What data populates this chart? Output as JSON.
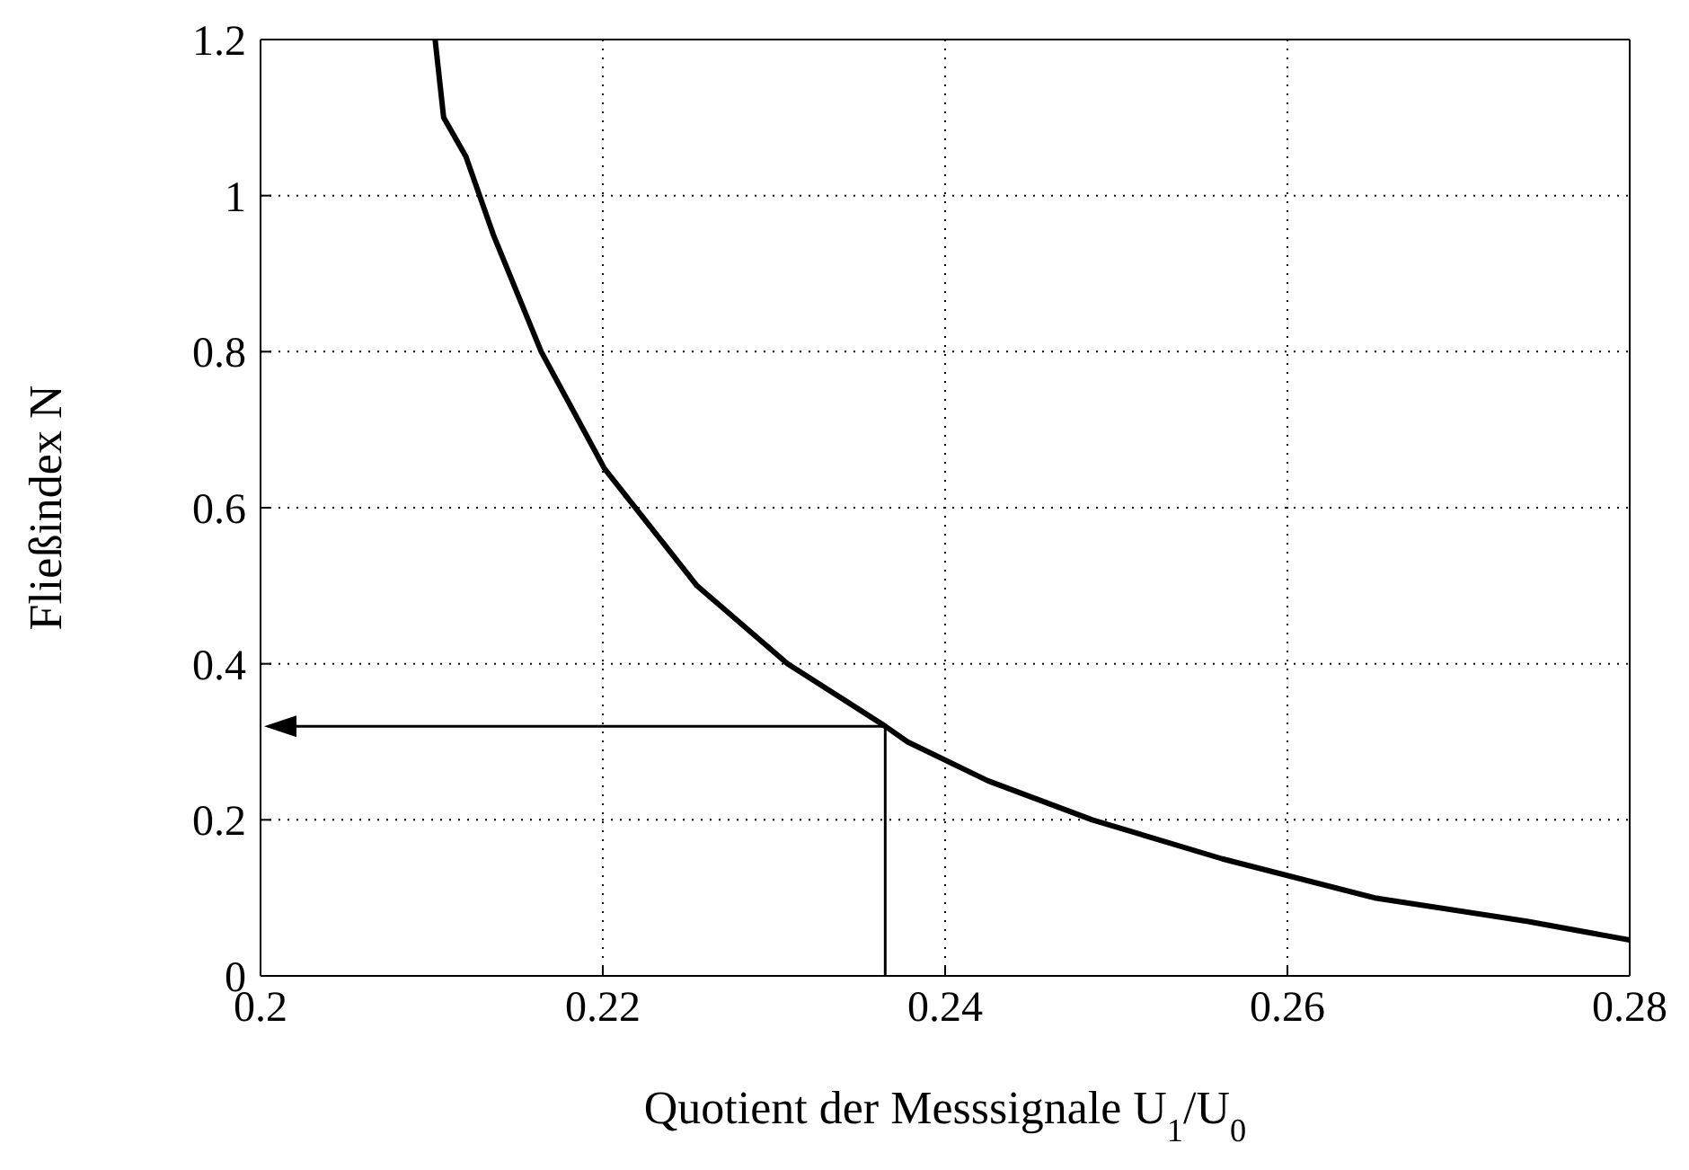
{
  "chart_data": {
    "type": "line",
    "xlabel": "Quotient der Messsignale U$_{1}$/U$_{0}$",
    "ylabel": "Fließindex N",
    "xlim": [
      0.2,
      0.28
    ],
    "xticks": [
      0.2,
      0.22,
      0.24,
      0.26,
      0.28
    ],
    "ylim": [
      0,
      1.2
    ],
    "yticks": [
      0,
      0.2,
      0.4,
      0.6,
      0.8,
      1,
      1.2
    ],
    "grid": true,
    "marker": "none",
    "line_style": "solid",
    "ref_lines": [
      {
        "axis": "x",
        "value": 0.2365,
        "color": "#000000"
      },
      {
        "axis": "y",
        "value": 0.32,
        "color": "#000000"
      }
    ],
    "series": [
      {
        "color": "#000000",
        "x": [
          0.2102,
          0.2107,
          0.212,
          0.2136,
          0.2164,
          0.2201,
          0.2255,
          0.2308,
          0.2365,
          0.2378,
          0.2425,
          0.2486,
          0.2562,
          0.2651,
          0.274,
          0.28
        ],
        "values": [
          1.2,
          1.1,
          1.05,
          0.95,
          0.8,
          0.65,
          0.5,
          0.4,
          0.32,
          0.3,
          0.25,
          0.2,
          0.15,
          0.1,
          0.07,
          0.046
        ]
      }
    ]
  }
}
